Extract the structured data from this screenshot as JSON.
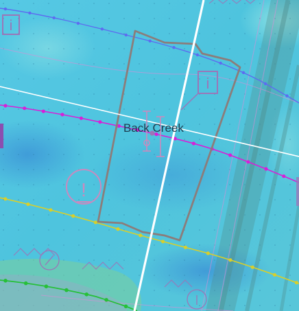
{
  "map": {
    "feature_label": "Back Creek",
    "symbols": [
      {
        "name": "info-icon",
        "label": "i"
      },
      {
        "name": "info-icon",
        "label": "i"
      },
      {
        "name": "warning-icon",
        "label": "!"
      }
    ],
    "colors": {
      "water": "#4cc7e0",
      "water_deep": "#3a8fd6",
      "contour_blue": "#5d6cf0",
      "contour_magenta": "#d81fd8",
      "contour_yellow": "#d9cf2a",
      "contour_green": "#26c038",
      "chart_symbols": "#9b76b8",
      "parcel_outline": "#8b7d7b",
      "grid_line": "#ffffff",
      "channel_band": "#4f8f90"
    }
  }
}
